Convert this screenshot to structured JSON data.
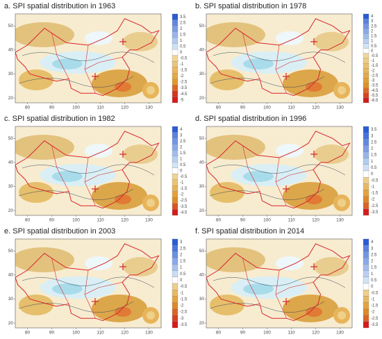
{
  "axes": {
    "xticks": [
      80,
      90,
      100,
      110,
      120,
      130
    ],
    "yticks": [
      20,
      30,
      40,
      50
    ],
    "xlim": [
      75,
      135
    ],
    "ylim": [
      18,
      55
    ]
  },
  "panels": [
    {
      "title": "a. SPI spatial distribution in 1963",
      "colorbar": [
        3.5,
        2.5,
        2,
        1.5,
        1,
        0.5,
        0,
        -0.5,
        -1,
        -1.5,
        -2,
        -2.5,
        -3.5,
        -4.5,
        -5
      ]
    },
    {
      "title": "b. SPI spatial distribution in 1978",
      "colorbar": [
        4,
        3,
        2.5,
        2,
        1.5,
        1,
        0.5,
        0,
        -0.5,
        -1,
        -1.5,
        -2,
        -2.5,
        -3,
        -3.5,
        -4.5,
        -5.5,
        -6.5
      ]
    },
    {
      "title": "c. SPI spatial distribution in 1982",
      "colorbar": [
        4,
        3,
        2.5,
        2,
        1.5,
        1,
        0.5,
        0,
        -0.5,
        -1,
        -1.5,
        -2,
        -2.5,
        -3.5,
        -4.5
      ]
    },
    {
      "title": "d. SPI spatial distribution in 1996",
      "colorbar": [
        3.5,
        3,
        2.5,
        2,
        1.5,
        1,
        0.5,
        0,
        -0.5,
        -1,
        -1.5,
        -2,
        -2.5,
        -3.5
      ]
    },
    {
      "title": "e. SPI spatial distribution in 2003",
      "colorbar": [
        3,
        2.5,
        2,
        1.5,
        1,
        0.5,
        0,
        -0.5,
        -1,
        -1.5,
        -2,
        -2.5,
        -3,
        -3.5
      ]
    },
    {
      "title": "f. SPI spatial distribution in 2014",
      "colorbar": [
        4,
        3,
        2.5,
        2,
        1.5,
        1,
        0.5,
        0,
        -0.5,
        -1,
        -1.5,
        -2,
        -2.5,
        -3.5
      ]
    }
  ]
}
